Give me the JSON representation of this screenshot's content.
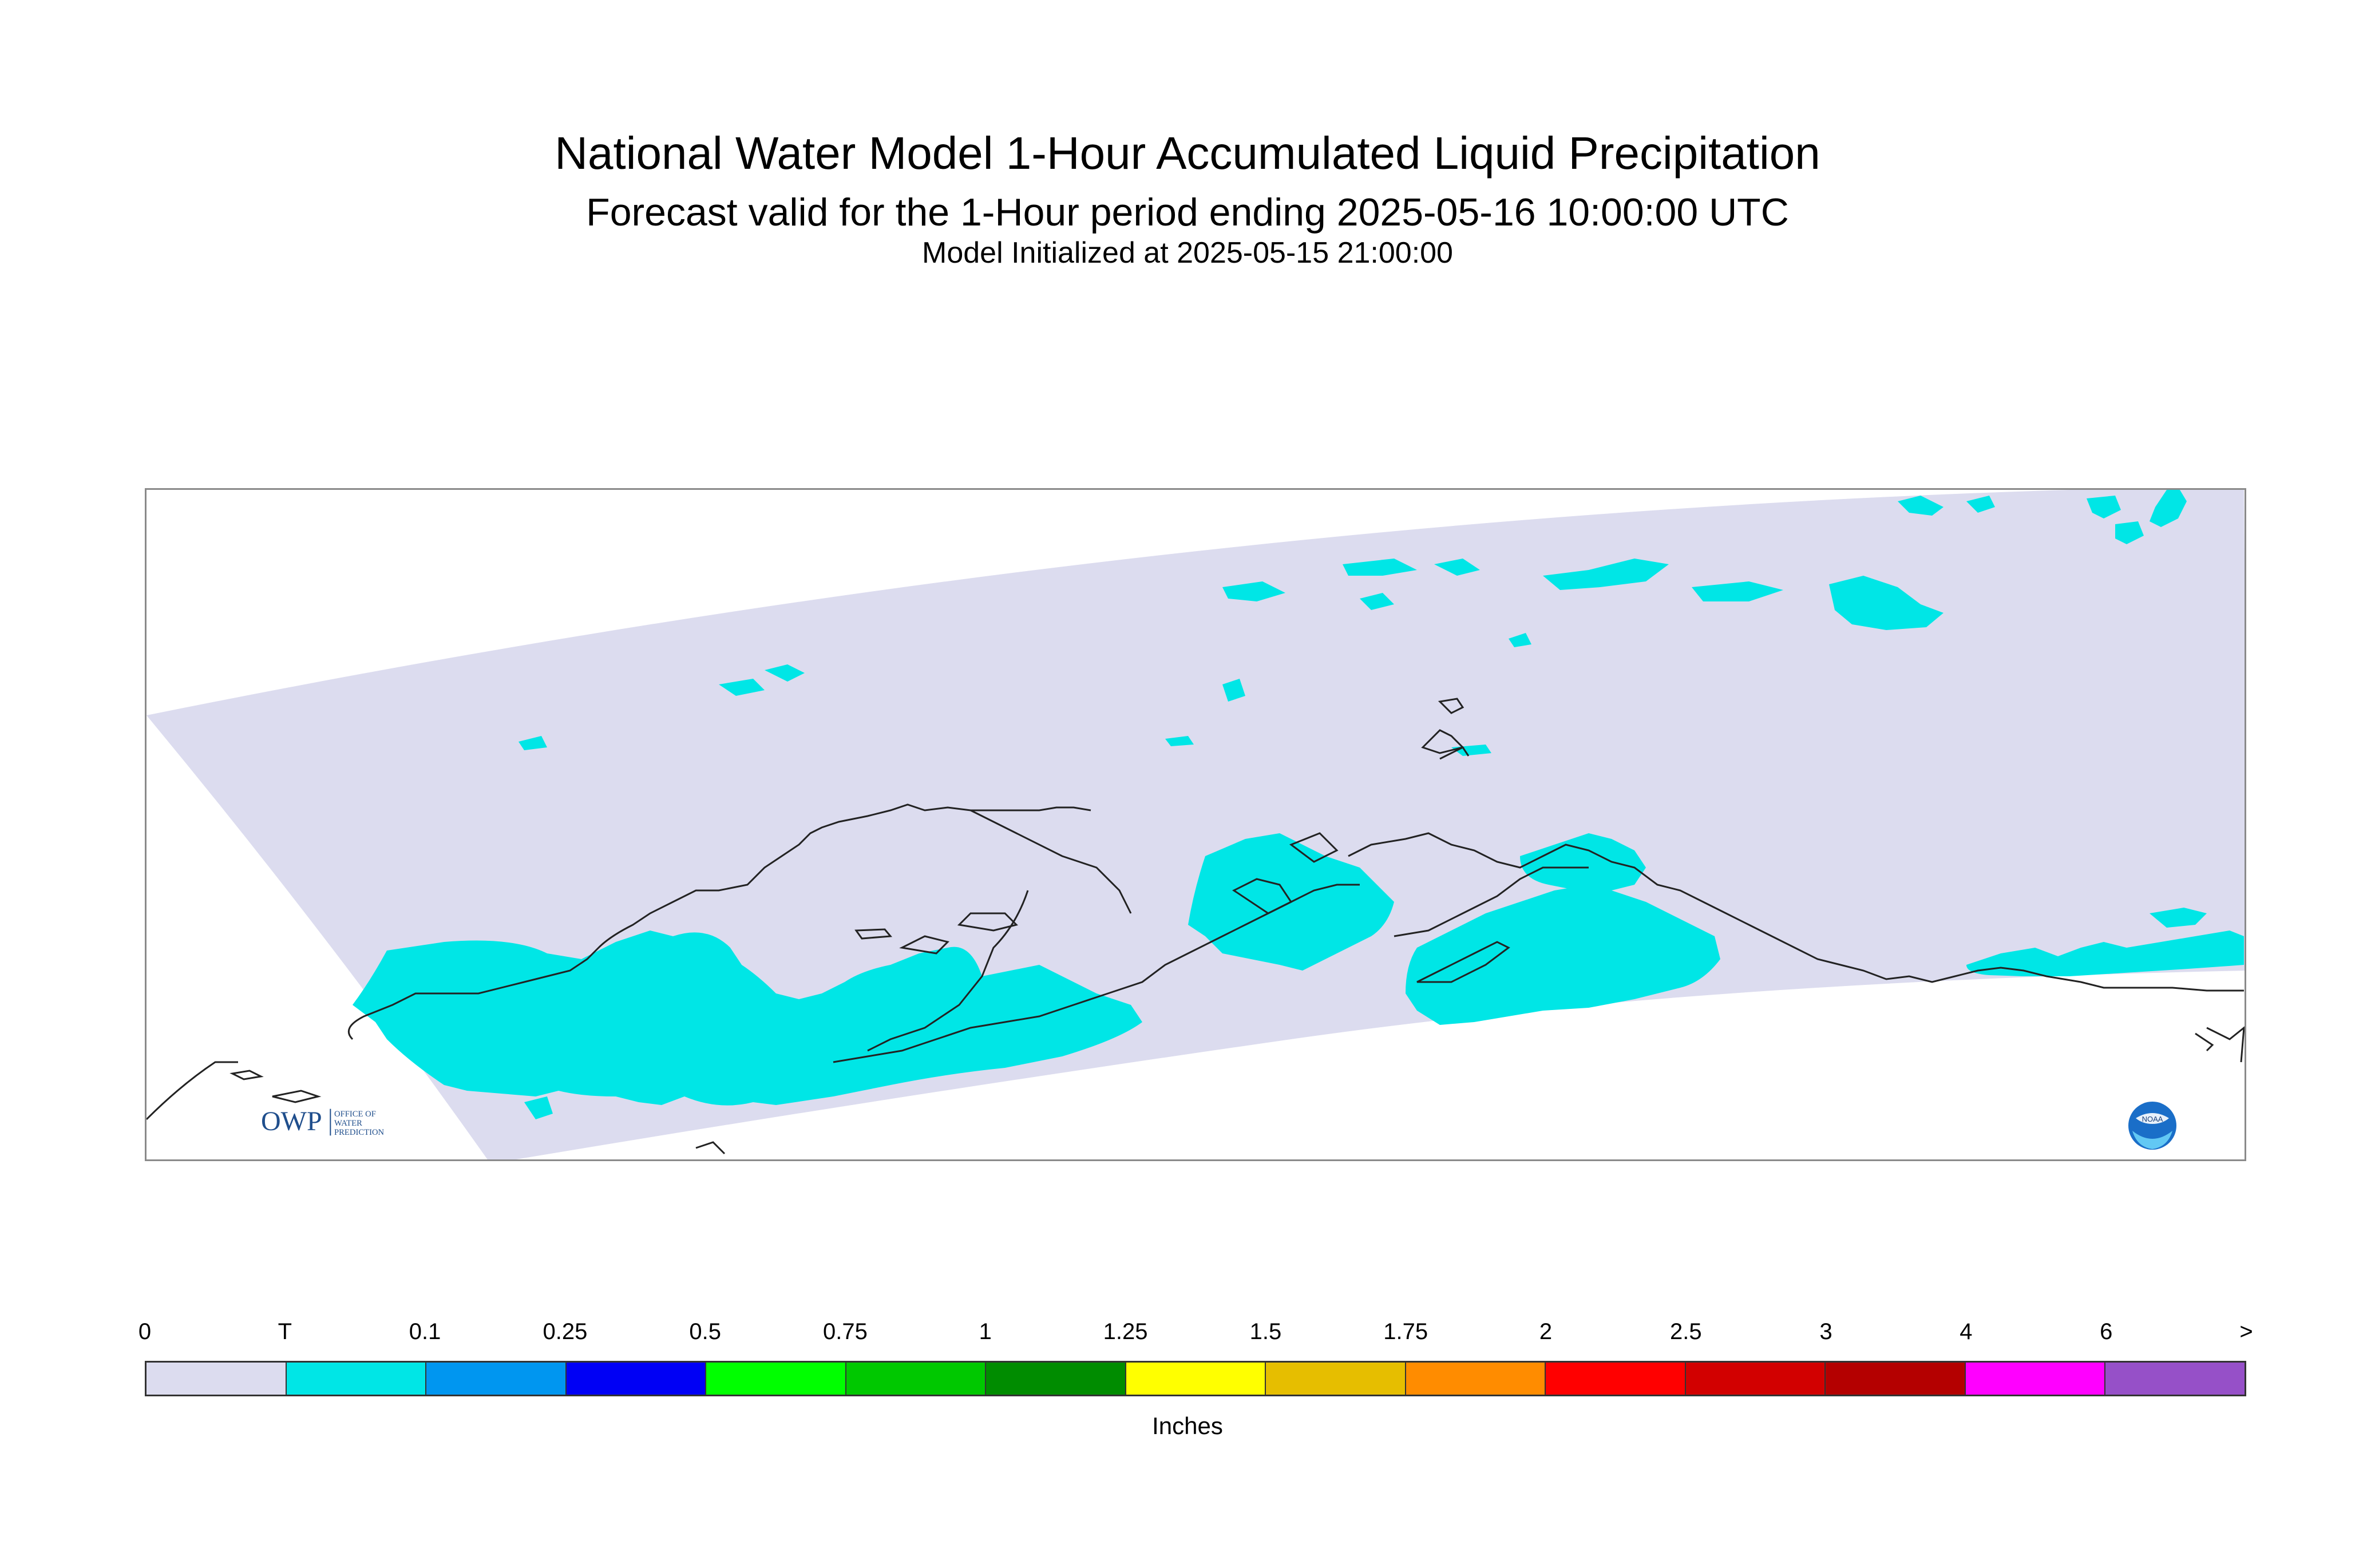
{
  "title": "National Water Model 1-Hour Accumulated Liquid Precipitation",
  "subtitle": "Forecast valid for the 1-Hour period ending 2025-05-16 10:00:00 UTC",
  "initialized": "Model Initialized at 2025-05-15 21:00:00",
  "map": {
    "domain_fill": "#dcdcef",
    "trace_precip_color": "#00e6e6",
    "coastline_color": "#222222",
    "region": "Alaska (south-central, Kodiak, Alaska Peninsula)"
  },
  "logos": {
    "owp": {
      "mark": "OWP",
      "text_lines": [
        "OFFICE OF",
        "WATER",
        "PREDICTION"
      ]
    },
    "noaa": {
      "mark": "NOAA"
    }
  },
  "legend": {
    "units": "Inches",
    "tick_labels": [
      "0",
      "T",
      "0.1",
      "0.25",
      "0.5",
      "0.75",
      "1",
      "1.25",
      "1.5",
      "1.75",
      "2",
      "2.5",
      "3",
      "4",
      "6",
      ">"
    ],
    "colors": [
      "#dcdcef",
      "#00e6e6",
      "#0096f0",
      "#0000f5",
      "#00ff00",
      "#00c800",
      "#008c00",
      "#ffff00",
      "#e6be00",
      "#ff8c00",
      "#ff0000",
      "#d20000",
      "#b40000",
      "#ff00ff",
      "#9650c8"
    ]
  }
}
